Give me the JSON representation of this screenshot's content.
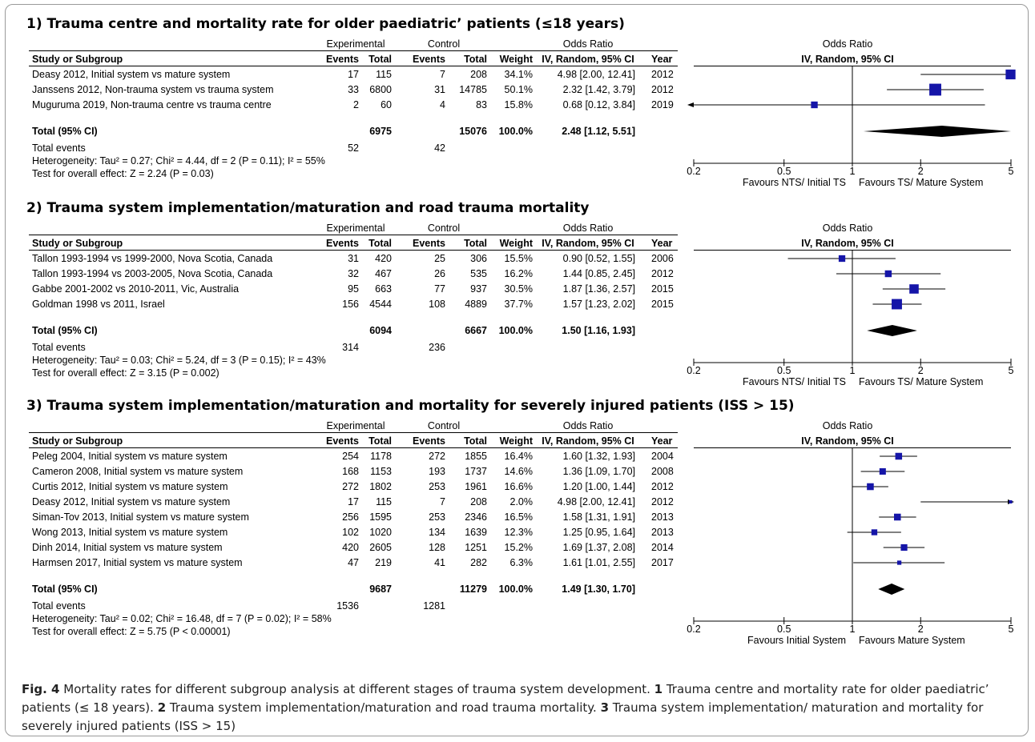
{
  "figure": {
    "caption_label": "Fig. 4",
    "caption_text": " Mortality rates for different subgroup analysis at different stages of trauma system development. ",
    "caption_parts": [
      {
        "num": "1",
        "text": " Trauma centre and mortality rate for older paediatric’ patients (≤ 18 years). "
      },
      {
        "num": "2",
        "text": " Trauma system implementation/maturation and road trauma mortality. "
      },
      {
        "num": "3",
        "text": " Trauma system implementation/ maturation and mortality for severely injured patients (ISS > 15)"
      }
    ]
  },
  "headers": {
    "experimental": "Experimental",
    "control": "Control",
    "odds_ratio": "Odds Ratio",
    "study": "Study or Subgroup",
    "events": "Events",
    "total": "Total",
    "weight": "Weight",
    "method": "IV, Random, 95% CI",
    "year": "Year",
    "total_label": "Total (95% CI)",
    "total_events_label": "Total events"
  },
  "colors": {
    "marker": "#1515a8",
    "diamond": "#000000",
    "line": "#000000"
  },
  "chart_data": [
    {
      "type": "forest",
      "title": "1) Trauma centre and mortality rate for older paediatric’ patients (≤18 years)",
      "xscale": "log",
      "xlim": [
        0.2,
        5
      ],
      "xticks": [
        "0.2",
        "0.5",
        "1",
        "2",
        "5"
      ],
      "favours_left": "Favours NTS/ Initial TS",
      "favours_right": "Favours TS/ Mature System",
      "studies": [
        {
          "name": "Deasy 2012, Initial system vs mature system",
          "exp_events": "17",
          "exp_total": "115",
          "ctl_events": "7",
          "ctl_total": "208",
          "weight": "34.1%",
          "ci_text": "4.98 [2.00, 12.41]",
          "year": "2012",
          "or": 4.98,
          "lo": 2.0,
          "hi": 12.41,
          "w": 34.1
        },
        {
          "name": "Janssens 2012, Non-trauma system vs trauma system",
          "exp_events": "33",
          "exp_total": "6800",
          "ctl_events": "31",
          "ctl_total": "14785",
          "weight": "50.1%",
          "ci_text": "2.32 [1.42, 3.79]",
          "year": "2012",
          "or": 2.32,
          "lo": 1.42,
          "hi": 3.79,
          "w": 50.1
        },
        {
          "name": "Muguruma 2019, Non-trauma centre vs trauma centre",
          "exp_events": "2",
          "exp_total": "60",
          "ctl_events": "4",
          "ctl_total": "83",
          "weight": "15.8%",
          "ci_text": "0.68 [0.12, 3.84]",
          "year": "2019",
          "or": 0.68,
          "lo": 0.12,
          "hi": 3.84,
          "w": 15.8
        }
      ],
      "total": {
        "exp_total": "6975",
        "ctl_total": "15076",
        "weight": "100.0%",
        "ci_text": "2.48 [1.12, 5.51]",
        "or": 2.48,
        "lo": 1.12,
        "hi": 5.51
      },
      "total_events": {
        "exp": "52",
        "ctl": "42"
      },
      "heterogeneity": "Heterogeneity: Tau² = 0.27; Chi² = 4.44, df = 2 (P = 0.11); I² = 55%",
      "overall_effect": "Test for overall effect: Z = 2.24 (P = 0.03)"
    },
    {
      "type": "forest",
      "title": "2) Trauma system implementation/maturation and road trauma mortality",
      "xscale": "log",
      "xlim": [
        0.2,
        5
      ],
      "xticks": [
        "0.2",
        "0.5",
        "1",
        "2",
        "5"
      ],
      "favours_left": "Favours NTS/ Initial TS",
      "favours_right": "Favours TS/ Mature System",
      "studies": [
        {
          "name": "Tallon 1993-1994 vs 1999-2000, Nova Scotia, Canada",
          "exp_events": "31",
          "exp_total": "420",
          "ctl_events": "25",
          "ctl_total": "306",
          "weight": "15.5%",
          "ci_text": "0.90 [0.52, 1.55]",
          "year": "2006",
          "or": 0.9,
          "lo": 0.52,
          "hi": 1.55,
          "w": 15.5
        },
        {
          "name": "Tallon 1993-1994 vs 2003-2005, Nova Scotia, Canada",
          "exp_events": "32",
          "exp_total": "467",
          "ctl_events": "26",
          "ctl_total": "535",
          "weight": "16.2%",
          "ci_text": "1.44 [0.85, 2.45]",
          "year": "2012",
          "or": 1.44,
          "lo": 0.85,
          "hi": 2.45,
          "w": 16.2
        },
        {
          "name": "Gabbe 2001-2002 vs 2010-2011, Vic, Australia",
          "exp_events": "95",
          "exp_total": "663",
          "ctl_events": "77",
          "ctl_total": "937",
          "weight": "30.5%",
          "ci_text": "1.87 [1.36, 2.57]",
          "year": "2015",
          "or": 1.87,
          "lo": 1.36,
          "hi": 2.57,
          "w": 30.5
        },
        {
          "name": "Goldman 1998 vs 2011, Israel",
          "exp_events": "156",
          "exp_total": "4544",
          "ctl_events": "108",
          "ctl_total": "4889",
          "weight": "37.7%",
          "ci_text": "1.57 [1.23, 2.02]",
          "year": "2015",
          "or": 1.57,
          "lo": 1.23,
          "hi": 2.02,
          "w": 37.7
        }
      ],
      "total": {
        "exp_total": "6094",
        "ctl_total": "6667",
        "weight": "100.0%",
        "ci_text": "1.50 [1.16, 1.93]",
        "or": 1.5,
        "lo": 1.16,
        "hi": 1.93
      },
      "total_events": {
        "exp": "314",
        "ctl": "236"
      },
      "heterogeneity": "Heterogeneity: Tau² = 0.03; Chi² = 5.24, df = 3 (P = 0.15); I² = 43%",
      "overall_effect": "Test for overall effect: Z = 3.15 (P = 0.002)"
    },
    {
      "type": "forest",
      "title": "3) Trauma system implementation/maturation and mortality for severely injured patients (ISS > 15)",
      "xscale": "log",
      "xlim": [
        0.2,
        5
      ],
      "xticks": [
        "0.2",
        "0.5",
        "1",
        "2",
        "5"
      ],
      "favours_left": "Favours Initial System",
      "favours_right": "Favours Mature System",
      "studies": [
        {
          "name": "Peleg 2004, Initial system vs mature system",
          "exp_events": "254",
          "exp_total": "1178",
          "ctl_events": "272",
          "ctl_total": "1855",
          "weight": "16.4%",
          "ci_text": "1.60 [1.32, 1.93]",
          "year": "2004",
          "or": 1.6,
          "lo": 1.32,
          "hi": 1.93,
          "w": 16.4
        },
        {
          "name": "Cameron 2008, Initial system vs mature system",
          "exp_events": "168",
          "exp_total": "1153",
          "ctl_events": "193",
          "ctl_total": "1737",
          "weight": "14.6%",
          "ci_text": "1.36 [1.09, 1.70]",
          "year": "2008",
          "or": 1.36,
          "lo": 1.09,
          "hi": 1.7,
          "w": 14.6
        },
        {
          "name": "Curtis 2012, Initial system vs mature system",
          "exp_events": "272",
          "exp_total": "1802",
          "ctl_events": "253",
          "ctl_total": "1961",
          "weight": "16.6%",
          "ci_text": "1.20 [1.00, 1.44]",
          "year": "2012",
          "or": 1.2,
          "lo": 1.0,
          "hi": 1.44,
          "w": 16.6
        },
        {
          "name": "Deasy 2012, Initial system vs mature system",
          "exp_events": "17",
          "exp_total": "115",
          "ctl_events": "7",
          "ctl_total": "208",
          "weight": "2.0%",
          "ci_text": "4.98 [2.00, 12.41]",
          "year": "2012",
          "or": 4.98,
          "lo": 2.0,
          "hi": 12.41,
          "w": 2.0
        },
        {
          "name": "Siman-Tov 2013, Initial system vs mature system",
          "exp_events": "256",
          "exp_total": "1595",
          "ctl_events": "253",
          "ctl_total": "2346",
          "weight": "16.5%",
          "ci_text": "1.58 [1.31, 1.91]",
          "year": "2013",
          "or": 1.58,
          "lo": 1.31,
          "hi": 1.91,
          "w": 16.5
        },
        {
          "name": "Wong 2013, Initial system vs mature system",
          "exp_events": "102",
          "exp_total": "1020",
          "ctl_events": "134",
          "ctl_total": "1639",
          "weight": "12.3%",
          "ci_text": "1.25 [0.95, 1.64]",
          "year": "2013",
          "or": 1.25,
          "lo": 0.95,
          "hi": 1.64,
          "w": 12.3
        },
        {
          "name": "Dinh 2014, Initial system vs mature system",
          "exp_events": "420",
          "exp_total": "2605",
          "ctl_events": "128",
          "ctl_total": "1251",
          "weight": "15.2%",
          "ci_text": "1.69 [1.37, 2.08]",
          "year": "2014",
          "or": 1.69,
          "lo": 1.37,
          "hi": 2.08,
          "w": 15.2
        },
        {
          "name": "Harmsen 2017, Initial system vs mature system",
          "exp_events": "47",
          "exp_total": "219",
          "ctl_events": "41",
          "ctl_total": "282",
          "weight": "6.3%",
          "ci_text": "1.61 [1.01, 2.55]",
          "year": "2017",
          "or": 1.61,
          "lo": 1.01,
          "hi": 2.55,
          "w": 6.3
        }
      ],
      "total": {
        "exp_total": "9687",
        "ctl_total": "11279",
        "weight": "100.0%",
        "ci_text": "1.49 [1.30, 1.70]",
        "or": 1.49,
        "lo": 1.3,
        "hi": 1.7
      },
      "total_events": {
        "exp": "1536",
        "ctl": "1281"
      },
      "heterogeneity": "Heterogeneity: Tau² = 0.02; Chi² = 16.48, df = 7 (P = 0.02); I² = 58%",
      "overall_effect": "Test for overall effect: Z = 5.75 (P < 0.00001)"
    }
  ]
}
